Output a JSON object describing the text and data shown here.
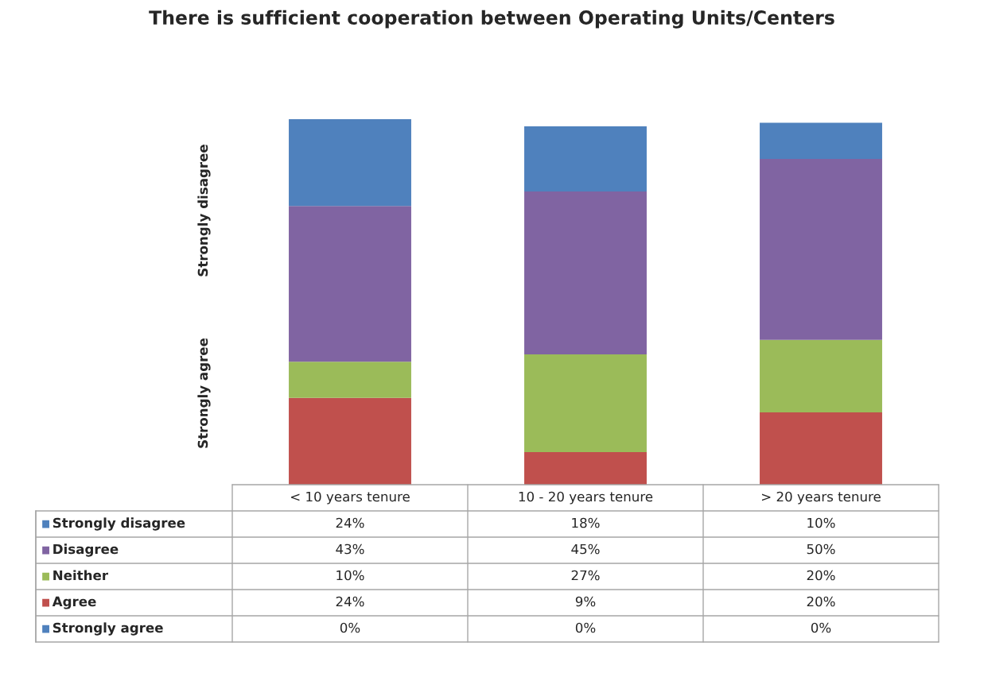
{
  "chart_data": {
    "type": "bar",
    "title": "There is sufficient cooperation between Operating Units/Centers",
    "categories": [
      "< 10 years tenure",
      "10 - 20 years tenure",
      "> 20 years tenure"
    ],
    "stacked": true,
    "tick_labels": false,
    "legend": "bottom",
    "series": [
      {
        "name": "Strongly agree",
        "color": "#4f81bd",
        "values": [
          0,
          0,
          0
        ],
        "value_labels": [
          "0%",
          "0%",
          "0%"
        ]
      },
      {
        "name": "Agree",
        "color": "#c0504d",
        "values": [
          24,
          9,
          20
        ],
        "value_labels": [
          "24%",
          "9%",
          "20%"
        ]
      },
      {
        "name": "Neither",
        "color": "#9bbb59",
        "values": [
          10,
          27,
          20
        ],
        "value_labels": [
          "10%",
          "27%",
          "20%"
        ]
      },
      {
        "name": "Disagree",
        "color": "#8064a2",
        "values": [
          43,
          45,
          50
        ],
        "value_labels": [
          "43%",
          "45%",
          "50%"
        ]
      },
      {
        "name": "Strongly disagree",
        "color": "#4f81bd",
        "values": [
          24,
          18,
          10
        ],
        "value_labels": [
          "24%",
          "18%",
          "10%"
        ]
      }
    ],
    "annotations": [
      "Strongly agree",
      "Strongly disagree"
    ]
  }
}
